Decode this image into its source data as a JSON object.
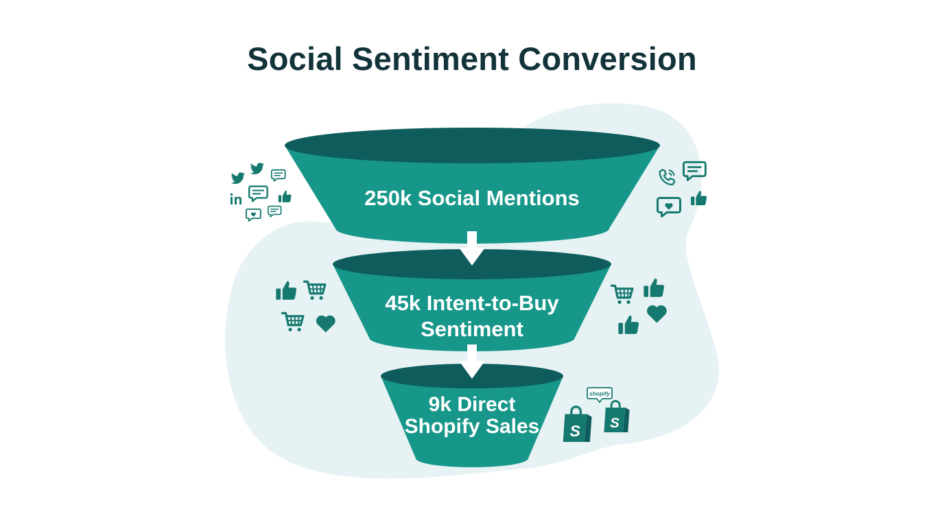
{
  "title": "Social Sentiment Conversion",
  "stages": [
    {
      "label": "250k Social Mentions",
      "value": 250000
    },
    {
      "label": "45k Intent-to-Buy Sentiment",
      "value": 45000
    },
    {
      "label": "9k Direct Shopify Sales",
      "value": 9000
    }
  ],
  "colors": {
    "funnel_fill": "#17978a",
    "funnel_top": "#0f5c5c",
    "icon": "#16796f",
    "background_blob": "#e6f2f4",
    "title": "#12333a"
  },
  "badge": {
    "text": "shopify"
  },
  "icon_groups": {
    "left_top": [
      "twitter-icon",
      "twitter-icon",
      "chat-bubble-icon",
      "chat-bubble-icon",
      "linkedin-icon",
      "thumbs-up-icon",
      "heart-bubble-icon",
      "chat-bubble-icon"
    ],
    "right_top": [
      "phone-icon",
      "chat-bubble-icon",
      "thumbs-up-icon",
      "heart-bubble-icon"
    ],
    "left_middle": [
      "thumbs-up-icon",
      "cart-icon",
      "cart-icon",
      "heart-icon"
    ],
    "right_middle": [
      "cart-icon",
      "thumbs-up-icon",
      "thumbs-up-icon",
      "heart-icon"
    ],
    "bottom_right": [
      "shopping-bag-icon",
      "shopping-bag-icon",
      "speech-bubble-icon"
    ]
  }
}
